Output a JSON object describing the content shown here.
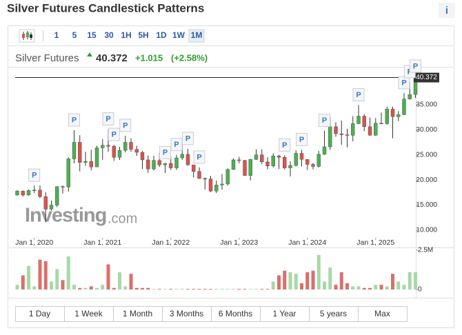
{
  "page": {
    "title": "Silver Futures Candlestick Patterns",
    "info": "i",
    "toolbar": [
      "1",
      "5",
      "15",
      "30",
      "1H",
      "5H",
      "1D",
      "1W",
      "1M"
    ],
    "toolbar_active": "1M",
    "instrument": "Silver Futures",
    "change": "+1.015",
    "change_pct": "(+2.58%)",
    "watermark": "Investing",
    "watermark_suffix": ".com",
    "ranges": [
      "1 Day",
      "1 Week",
      "1 Month",
      "3 Months",
      "6 Months",
      "1 Year",
      "5 years",
      "Max"
    ]
  },
  "chart_data": {
    "type": "candlestick",
    "x": [
      "2019-10-01",
      "2019-11-01",
      "2019-12-01",
      "2020-01-01",
      "2020-02-01",
      "2020-03-01",
      "2020-04-01",
      "2020-05-01",
      "2020-06-01",
      "2020-07-01",
      "2020-08-01",
      "2020-09-01",
      "2020-10-01",
      "2020-11-01",
      "2020-12-01",
      "2021-01-01",
      "2021-02-01",
      "2021-03-01",
      "2021-04-01",
      "2021-05-01",
      "2021-06-01",
      "2021-07-01",
      "2021-08-01",
      "2021-09-01",
      "2021-10-01",
      "2021-11-01",
      "2021-12-01",
      "2022-01-01",
      "2022-02-01",
      "2022-03-01",
      "2022-04-01",
      "2022-05-01",
      "2022-06-01",
      "2022-07-01",
      "2022-08-01",
      "2022-09-01",
      "2022-10-01",
      "2022-11-01",
      "2022-12-01",
      "2023-01-01",
      "2023-02-01",
      "2023-03-01",
      "2023-04-01",
      "2023-05-01",
      "2023-06-01",
      "2023-07-01",
      "2023-08-01",
      "2023-09-01",
      "2023-10-01",
      "2023-11-01",
      "2023-12-01",
      "2024-01-01",
      "2024-02-01",
      "2024-03-01",
      "2024-04-01",
      "2024-05-01",
      "2024-06-01",
      "2024-07-01",
      "2024-08-01",
      "2024-09-01",
      "2024-10-01",
      "2024-11-01",
      "2024-12-01",
      "2025-01-01",
      "2025-02-01",
      "2025-03-01",
      "2025-04-01",
      "2025-05-01",
      "2025-06-01",
      "2025-07-01",
      "2025-08-01"
    ],
    "open": [
      17.0,
      17.8,
      17.0,
      17.9,
      18.0,
      16.7,
      14.2,
      15.0,
      18.7,
      18.6,
      24.2,
      27.5,
      23.5,
      23.7,
      22.6,
      26.4,
      26.9,
      26.7,
      24.5,
      25.9,
      27.5,
      26.1,
      25.5,
      24.0,
      22.2,
      23.9,
      23.0,
      23.3,
      22.4,
      24.4,
      25.1,
      23.0,
      21.7,
      20.3,
      20.2,
      17.8,
      19.0,
      19.2,
      22.1,
      24.0,
      23.9,
      20.9,
      24.1,
      25.0,
      23.6,
      22.8,
      24.8,
      24.5,
      22.4,
      22.9,
      25.3,
      24.1,
      23.1,
      22.7,
      25.1,
      26.6,
      30.6,
      29.2,
      29.0,
      28.9,
      31.2,
      32.7,
      30.6,
      28.9,
      31.3,
      31.2,
      34.1,
      32.6,
      33.0,
      36.1,
      37.0
    ],
    "high": [
      18.0,
      17.9,
      18.1,
      18.9,
      18.9,
      17.6,
      15.9,
      18.7,
      18.9,
      24.5,
      29.9,
      28.9,
      25.6,
      26.0,
      26.8,
      28.1,
      30.1,
      27.0,
      26.6,
      28.8,
      28.3,
      26.8,
      25.8,
      24.9,
      24.8,
      25.4,
      23.4,
      24.7,
      25.0,
      27.5,
      26.2,
      23.0,
      22.5,
      20.5,
      20.8,
      19.9,
      21.2,
      22.3,
      24.3,
      24.6,
      24.0,
      24.2,
      26.1,
      26.1,
      24.5,
      25.3,
      25.0,
      24.9,
      23.7,
      25.9,
      26.0,
      24.1,
      23.4,
      25.8,
      29.8,
      32.5,
      31.5,
      31.8,
      30.2,
      32.7,
      34.9,
      33.1,
      32.4,
      32.3,
      33.4,
      34.6,
      34.6,
      33.7,
      37.3,
      39.5,
      40.6
    ],
    "low": [
      16.9,
      16.7,
      16.9,
      17.4,
      16.4,
      11.6,
      13.9,
      14.6,
      17.3,
      17.7,
      23.3,
      21.7,
      22.8,
      21.9,
      22.6,
      24.0,
      25.6,
      23.8,
      24.0,
      25.5,
      25.6,
      24.8,
      22.2,
      21.4,
      21.9,
      22.6,
      21.4,
      22.0,
      22.0,
      24.0,
      22.9,
      20.5,
      20.2,
      18.1,
      17.6,
      17.4,
      18.1,
      18.9,
      22.0,
      23.3,
      20.8,
      19.9,
      24.0,
      23.2,
      22.1,
      22.5,
      22.2,
      22.1,
      20.7,
      22.7,
      22.7,
      22.0,
      22.1,
      22.5,
      25.0,
      26.0,
      28.6,
      27.0,
      26.5,
      27.7,
      31.1,
      29.7,
      28.8,
      28.8,
      31.1,
      31.0,
      28.3,
      31.7,
      32.9,
      36.0,
      36.3
    ],
    "close": [
      17.8,
      17.0,
      17.9,
      18.0,
      16.7,
      14.2,
      15.0,
      18.7,
      18.6,
      24.2,
      27.5,
      23.5,
      23.7,
      22.6,
      26.4,
      26.9,
      26.7,
      24.5,
      25.9,
      27.5,
      26.1,
      25.5,
      24.0,
      22.2,
      23.9,
      23.0,
      23.3,
      22.4,
      24.4,
      25.1,
      23.0,
      21.7,
      20.3,
      20.2,
      17.8,
      19.0,
      19.2,
      22.1,
      24.0,
      23.9,
      20.9,
      24.1,
      25.0,
      23.6,
      22.8,
      24.8,
      24.5,
      22.4,
      22.9,
      25.3,
      24.1,
      23.1,
      22.7,
      25.1,
      26.6,
      30.6,
      29.2,
      29.0,
      28.9,
      31.2,
      32.7,
      30.6,
      28.9,
      31.3,
      31.2,
      34.1,
      32.6,
      33.0,
      36.1,
      37.0,
      40.372
    ],
    "volume": [
      300000,
      900000,
      1500000,
      200000,
      1900000,
      1800000,
      500000,
      1300000,
      600000,
      2100000,
      300000,
      100000,
      100000,
      200000,
      100000,
      300000,
      1600000,
      100000,
      1100000,
      200000,
      1000000,
      100000,
      100000,
      100000,
      40000,
      40000,
      40000,
      40000,
      40000,
      40000,
      40000,
      40000,
      40000,
      40000,
      40000,
      40000,
      40000,
      40000,
      40000,
      40000,
      40000,
      40000,
      40000,
      40000,
      40000,
      500000,
      900000,
      1200000,
      1100000,
      1000000,
      400000,
      1100000,
      1200000,
      2200000,
      500000,
      1400000,
      300000,
      1100000,
      400000,
      200000,
      200000,
      100000,
      100000,
      300000,
      300000,
      200000,
      1000000,
      500000,
      300000,
      1100000,
      1100000
    ],
    "up_color": "#4caf50",
    "down_color": "#d9534f",
    "up_volume_color": "#a8d8a8",
    "down_volume_color": "#d9706c",
    "ylim": [
      8.5,
      42.5
    ],
    "yticks": [
      {
        "value": 10,
        "label": "10.000"
      },
      {
        "value": 15,
        "label": "15.000"
      },
      {
        "value": 20,
        "label": "20.000"
      },
      {
        "value": 25,
        "label": "25.000"
      },
      {
        "value": 30,
        "label": "30.000"
      },
      {
        "value": 35,
        "label": "35.000"
      }
    ],
    "xticks": [
      {
        "value": "2020-01-01",
        "label": "Jan 1, 2020"
      },
      {
        "value": "2021-01-01",
        "label": "Jan 1, 2021"
      },
      {
        "value": "2022-01-01",
        "label": "Jan 1, 2022"
      },
      {
        "value": "2023-01-01",
        "label": "Jan 1, 2023"
      },
      {
        "value": "2024-01-01",
        "label": "Jan 1, 2024"
      },
      {
        "value": "2025-01-01",
        "label": "Jan 1, 2025"
      }
    ],
    "volume_lim": [
      0,
      3000000
    ],
    "volume_ticks": [
      {
        "value": 2500000,
        "label": "2.5M"
      },
      0
    ],
    "pattern_markers": [
      {
        "x": "2020-01-01",
        "label": "P"
      },
      {
        "x": "2020-08-01",
        "label": "P"
      },
      {
        "x": "2021-02-01",
        "label": "P"
      },
      {
        "x": "2021-03-01",
        "label": "P"
      },
      {
        "x": "2021-05-01",
        "label": "P"
      },
      {
        "x": "2021-12-01",
        "label": "P"
      },
      {
        "x": "2022-02-01",
        "label": "P"
      },
      {
        "x": "2022-04-01",
        "label": "P"
      },
      {
        "x": "2022-06-01",
        "label": "P"
      },
      {
        "x": "2023-09-01",
        "label": "P"
      },
      {
        "x": "2023-12-01",
        "label": "P"
      },
      {
        "x": "2024-04-01",
        "label": "P"
      },
      {
        "x": "2024-10-01",
        "label": "P"
      },
      {
        "x": "2025-06-01",
        "label": "P"
      },
      {
        "x": "2025-07-01",
        "label": "P"
      },
      {
        "x": "2025-08-01",
        "label": "P"
      }
    ]
  }
}
